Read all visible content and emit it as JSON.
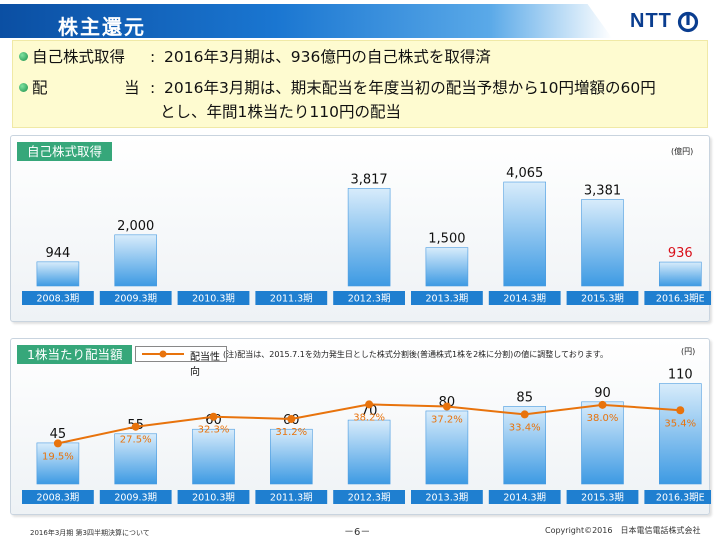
{
  "header": {
    "title": "株主還元",
    "logo_text": "NTT"
  },
  "summary": {
    "row1": {
      "label": "自己株式取得",
      "text": "2016年3月期は、936億円の自己株式を取得済"
    },
    "row2": {
      "label_a": "配",
      "label_b": "当",
      "text_line1": "2016年3月期は、期末配当を年度当初の配当予想から10円増額の60円",
      "text_line2": "とし、年間1株当たり110円の配当"
    }
  },
  "panel_buyback": {
    "label": "自己株式取得",
    "unit": "(億円)"
  },
  "panel_dividend": {
    "label": "1株当たり配当額",
    "legend": "配当性向",
    "note": "(注)配当は、2015.7.1を効力発生日とした株式分割後(普通株式1株を2株に分割)の値に調整しております。",
    "unit": "(円)"
  },
  "colors": {
    "bar_top": "#d8ecfb",
    "bar_bottom": "#3d9ae3",
    "line": "#e8730c",
    "highlight": "#d9101a",
    "panel_label": "#36a77a"
  },
  "chart_data": [
    {
      "type": "bar",
      "title": "自己株式取得",
      "categories": [
        "2008.3期",
        "2009.3期",
        "2010.3期",
        "2011.3期",
        "2012.3期",
        "2013.3期",
        "2014.3期",
        "2015.3期",
        "2016.3期E"
      ],
      "values": [
        944,
        2000,
        null,
        null,
        3817,
        1500,
        4065,
        3381,
        936
      ],
      "value_labels": [
        "944",
        "2,000",
        "",
        "",
        "3,817",
        "1,500",
        "4,065",
        "3,381",
        "936"
      ],
      "ylim": [
        0,
        4300
      ]
    },
    {
      "type": "bar",
      "title": "1株当たり配当額",
      "categories": [
        "2008.3期",
        "2009.3期",
        "2010.3期",
        "2011.3期",
        "2012.3期",
        "2013.3期",
        "2014.3期",
        "2015.3期",
        "2016.3期E"
      ],
      "values": [
        45,
        55,
        60,
        60,
        70,
        80,
        85,
        90,
        110
      ],
      "value_labels": [
        "45",
        "55",
        "60",
        "60",
        "70",
        "80",
        "85",
        "90",
        "110"
      ],
      "ylim": [
        0,
        115
      ],
      "series": [
        {
          "name": "配当性向",
          "values": [
            19.5,
            27.5,
            32.3,
            31.2,
            38.2,
            37.2,
            33.4,
            38.0,
            35.4
          ],
          "labels": [
            "19.5%",
            "27.5%",
            "32.3%",
            "31.2%",
            "38.2%",
            "37.2%",
            "33.4%",
            "38.0%",
            "35.4%"
          ],
          "ylim": [
            0,
            60
          ]
        }
      ]
    }
  ],
  "footer": {
    "left": "2016年3月期 第3四半期決算について",
    "page": "－6－",
    "copyright": "Copyright©2016　日本電信電話株式会社"
  }
}
